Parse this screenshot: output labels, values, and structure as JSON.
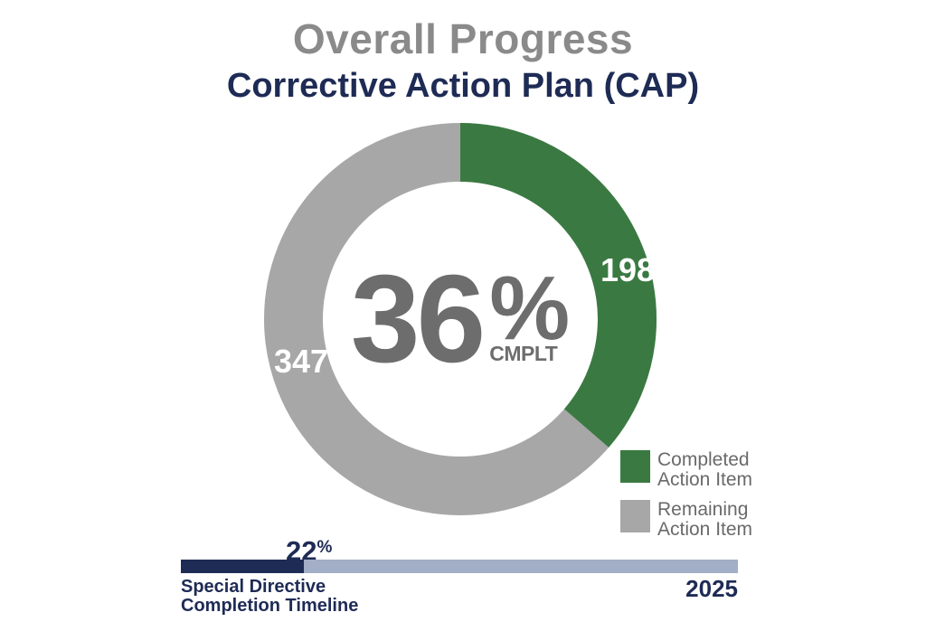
{
  "header": {
    "title": "Overall Progress",
    "subtitle": "Corrective Action Plan (CAP)"
  },
  "donut": {
    "center_value": "36",
    "center_unit": "%",
    "center_caption": "CMPLT",
    "completed_count": "198",
    "remaining_count": "347"
  },
  "legend": {
    "completed": {
      "line1": "Completed",
      "line2": "Action Item"
    },
    "remaining": {
      "line1": "Remaining",
      "line2": "Action Item"
    }
  },
  "timeline": {
    "percent_value": "22",
    "percent_unit": "%",
    "caption_line1": "Special Directive",
    "caption_line2": "Completion Timeline",
    "year": "2025"
  },
  "colors": {
    "green": "#3a7a42",
    "ring_gray": "#a7a7a7",
    "navy": "#1e2b55",
    "timeline_track": "#a3aec7",
    "title_gray": "#8a8a8a",
    "center_gray": "#6d6d6d",
    "legend_text": "#6a6a6a",
    "white": "#ffffff"
  },
  "chart_data": [
    {
      "type": "pie",
      "subtype": "donut",
      "title": "Overall Progress — Corrective Action Plan (CAP)",
      "labels": [
        "Completed Action Item",
        "Remaining Action Item"
      ],
      "values": [
        198,
        347
      ],
      "colors": [
        "#3a7a42",
        "#a7a7a7"
      ],
      "percent_complete": 36,
      "center_label": "36% CMPLT",
      "start_angle_deg": 0,
      "direction": "clockwise",
      "legend_position": "bottom-right"
    },
    {
      "type": "bar",
      "subtype": "horizontal-progress",
      "title": "Special Directive Completion Timeline",
      "categories": [
        "Completion"
      ],
      "values": [
        22
      ],
      "value_label": "22%",
      "axis_end_label": "2025",
      "range": [
        0,
        100
      ],
      "colors": [
        "#1e2b55",
        "#a3aec7"
      ]
    }
  ]
}
